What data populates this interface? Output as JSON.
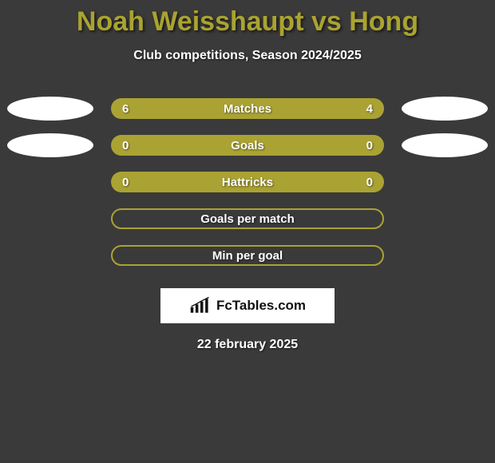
{
  "title": "Noah Weisshaupt vs Hong",
  "title_color": "#aaa32f",
  "subtitle": "Club competitions, Season 2024/2025",
  "ellipse_color": "#ffffff",
  "bar_solid_color": "#aaa333",
  "bar_outline_color": "#aaa333",
  "background_color": "#3a3a3a",
  "rows": [
    {
      "label": "Matches",
      "left": "6",
      "right": "4",
      "style": "solid",
      "show_ellipses": true,
      "show_vals": true
    },
    {
      "label": "Goals",
      "left": "0",
      "right": "0",
      "style": "solid",
      "show_ellipses": true,
      "show_vals": true
    },
    {
      "label": "Hattricks",
      "left": "0",
      "right": "0",
      "style": "solid",
      "show_ellipses": false,
      "show_vals": true
    },
    {
      "label": "Goals per match",
      "left": "",
      "right": "",
      "style": "outline",
      "show_ellipses": false,
      "show_vals": false
    },
    {
      "label": "Min per goal",
      "left": "",
      "right": "",
      "style": "outline",
      "show_ellipses": false,
      "show_vals": false
    }
  ],
  "logo_text": "FcTables.com",
  "date": "22 february 2025"
}
